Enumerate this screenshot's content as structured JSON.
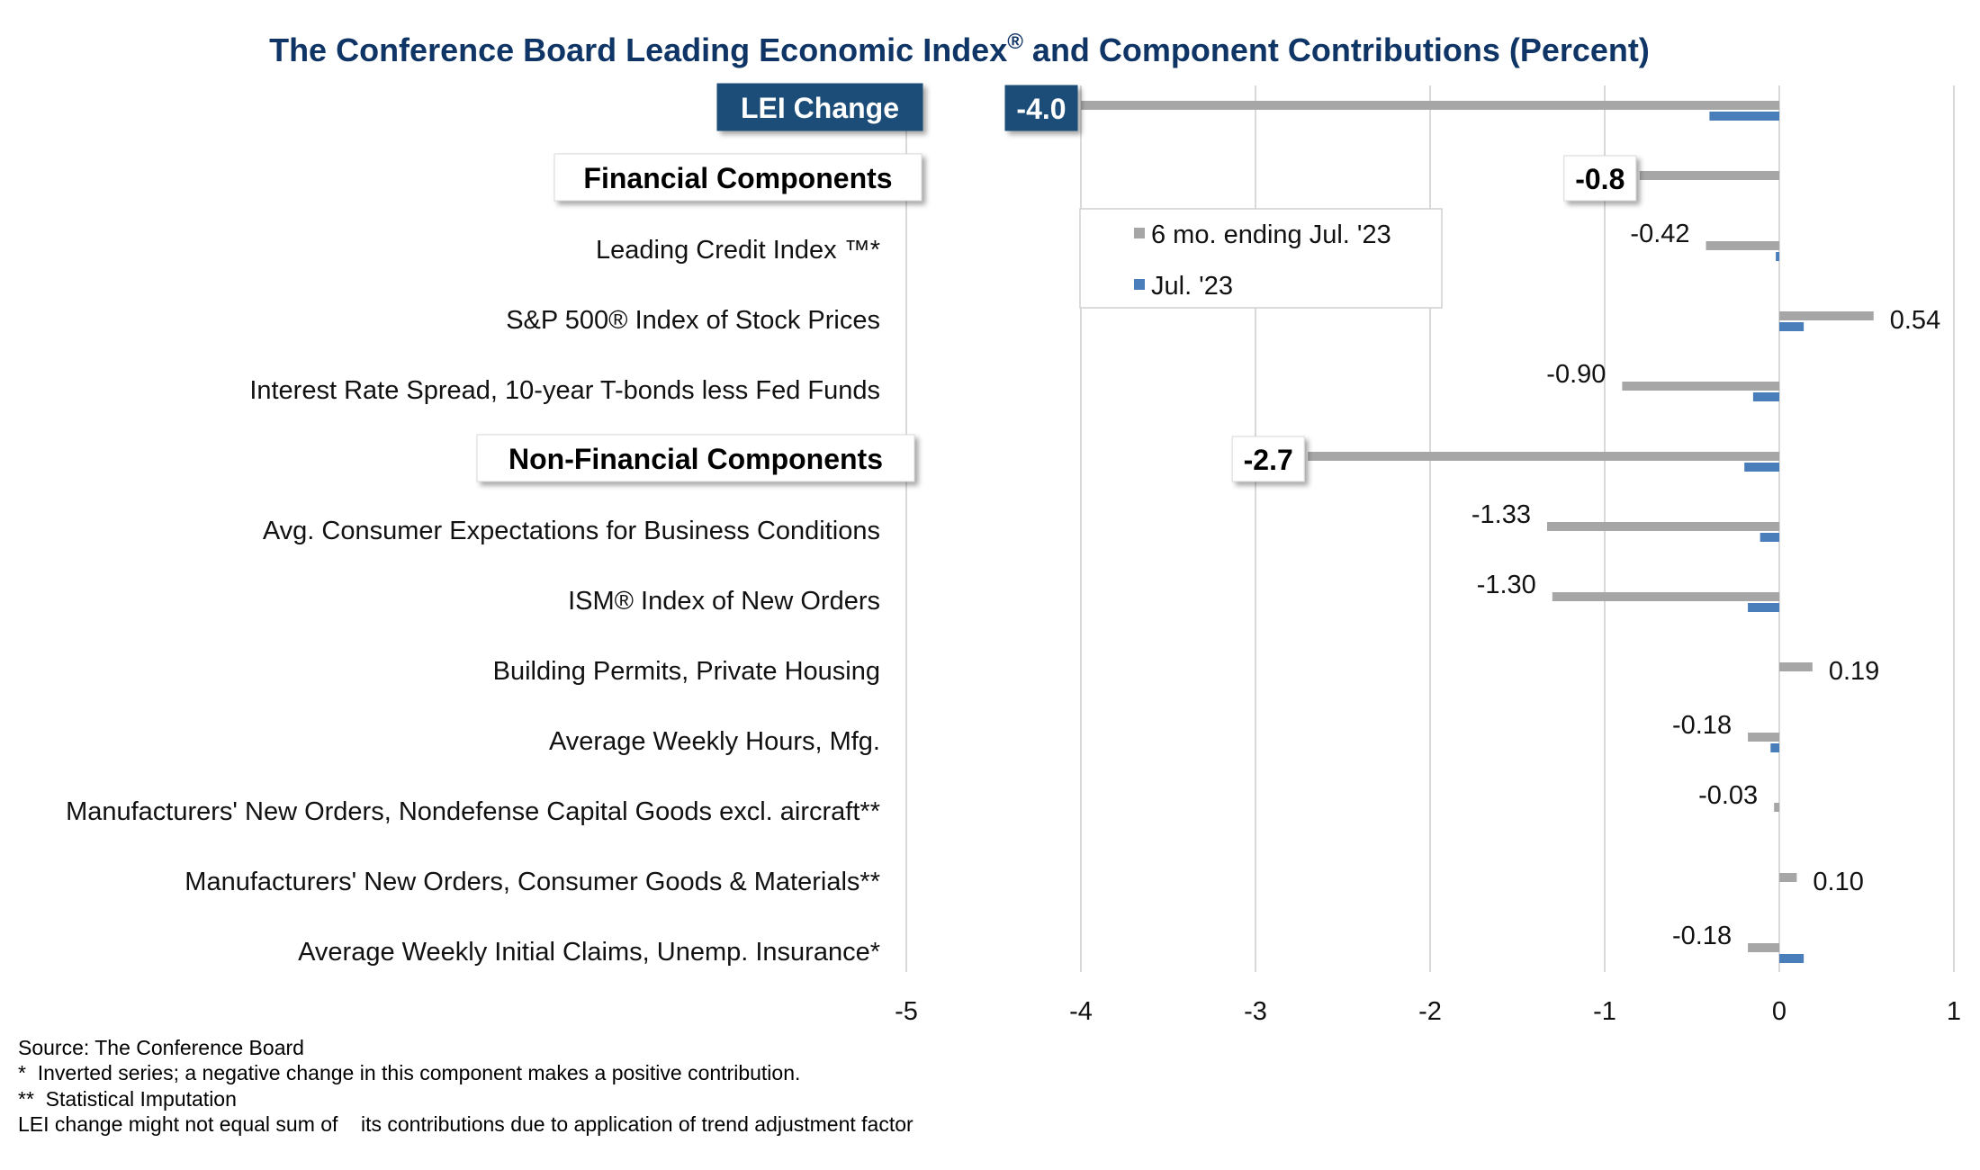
{
  "chart_data": {
    "type": "bar",
    "orientation": "horizontal",
    "title": "The Conference Board Leading Economic Index",
    "title_mark": "®",
    "title_suffix": " and Component Contributions (Percent)",
    "xlim": [
      -5,
      1
    ],
    "xticks": [
      "-5",
      "-4",
      "-3",
      "-2",
      "-1",
      "0",
      "1"
    ],
    "grid": true,
    "legend_position": "upper-center",
    "series": [
      {
        "name": "6 mo. ending Jul. '23",
        "color": "#a6a6a6"
      },
      {
        "name": "Jul. '23",
        "color": "#4a7ebb"
      }
    ],
    "rows": [
      {
        "kind": "header",
        "label": "LEI Change",
        "six_month": -4.0,
        "july": -0.4,
        "value_label": "-4.0"
      },
      {
        "kind": "header",
        "label": "Financial Components",
        "six_month": -0.8,
        "july": null,
        "value_label": "-0.8"
      },
      {
        "kind": "component",
        "label": "Leading Credit Index ™*",
        "six_month": -0.42,
        "july": -0.02,
        "value_label": "-0.42"
      },
      {
        "kind": "component",
        "label": "S&P 500® Index of Stock Prices",
        "six_month": 0.54,
        "july": 0.14,
        "value_label": "0.54"
      },
      {
        "kind": "component",
        "label": "Interest Rate Spread, 10-year T-bonds less Fed Funds",
        "six_month": -0.9,
        "july": -0.15,
        "value_label": "-0.90"
      },
      {
        "kind": "header",
        "label": "Non-Financial Components",
        "six_month": -2.7,
        "july": -0.2,
        "value_label": "-2.7"
      },
      {
        "kind": "component",
        "label": "Avg. Consumer Expectations for Business Conditions",
        "six_month": -1.33,
        "july": -0.11,
        "value_label": "-1.33"
      },
      {
        "kind": "component",
        "label": "ISM® Index of New Orders",
        "six_month": -1.3,
        "july": -0.18,
        "value_label": "-1.30"
      },
      {
        "kind": "component",
        "label": "Building Permits, Private Housing",
        "six_month": 0.19,
        "july": null,
        "value_label": "0.19"
      },
      {
        "kind": "component",
        "label": "Average Weekly Hours, Mfg.",
        "six_month": -0.18,
        "july": -0.05,
        "value_label": "-0.18"
      },
      {
        "kind": "component",
        "label": "Manufacturers' New Orders, Nondefense Capital Goods excl. aircraft**",
        "six_month": -0.03,
        "july": null,
        "value_label": "-0.03"
      },
      {
        "kind": "component",
        "label": "Manufacturers' New Orders, Consumer Goods & Materials**",
        "six_month": 0.1,
        "july": null,
        "value_label": "0.10"
      },
      {
        "kind": "component",
        "label": "Average Weekly Initial Claims, Unemp. Insurance*",
        "six_month": -0.18,
        "july": 0.14,
        "value_label": "-0.18"
      }
    ]
  },
  "footnotes": [
    "Source: The Conference Board",
    "*  Inverted series; a negative change in this component makes a positive contribution.",
    "**  Statistical Imputation",
    "LEI change might not equal sum of    its contributions due to application of trend adjustment factor"
  ],
  "colors": {
    "title": "#0f3566",
    "lei_box": "#1f4e79",
    "six_month_bar": "#a6a6a6",
    "july_bar": "#4a7ebb",
    "grid": "#d9d9d9"
  }
}
